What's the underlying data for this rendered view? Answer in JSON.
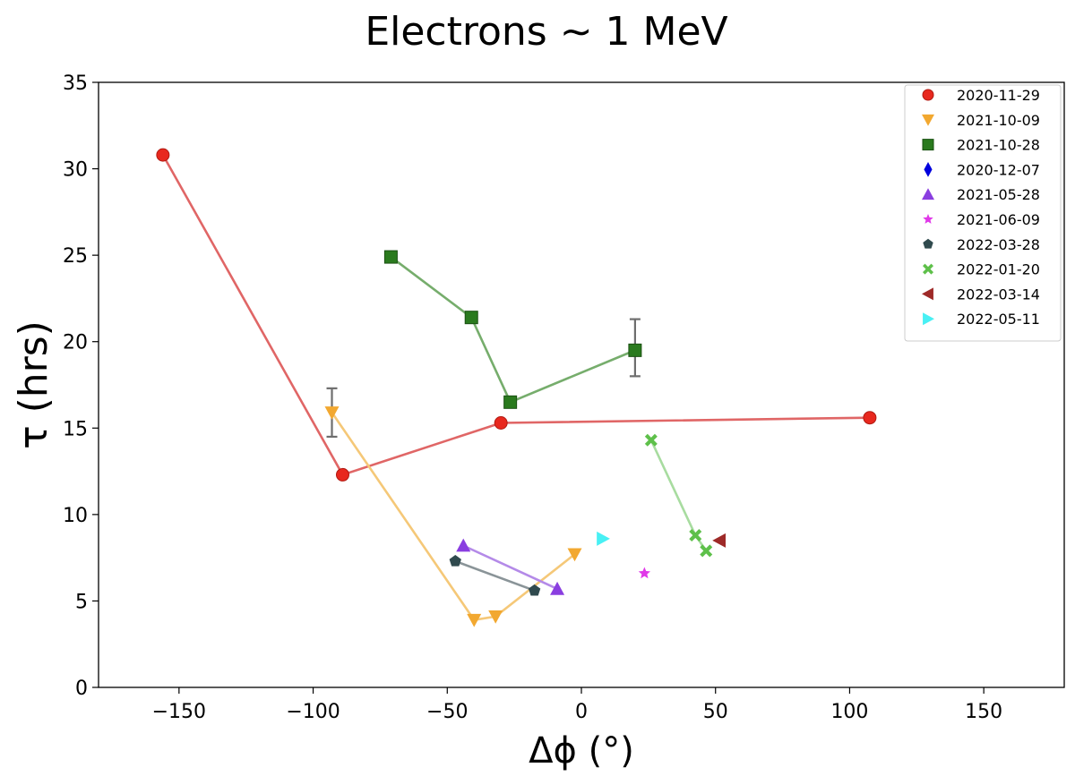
{
  "chart_data": {
    "type": "scatter",
    "title": "Electrons  ∼  1 MeV",
    "xlabel": "Δϕ (°)",
    "ylabel": "τ (hrs)",
    "xlim": [
      -180,
      180
    ],
    "ylim": [
      0,
      35
    ],
    "xticks": [
      -150,
      -100,
      -50,
      0,
      50,
      100,
      150
    ],
    "yticks": [
      0,
      5,
      10,
      15,
      20,
      25,
      30,
      35
    ],
    "xtick_labels": [
      "−150",
      "−100",
      "−50",
      "0",
      "50",
      "100",
      "150"
    ],
    "ytick_labels": [
      "0",
      "5",
      "10",
      "15",
      "20",
      "25",
      "30",
      "35"
    ],
    "grid": false,
    "legend_position": "top-right",
    "series": [
      {
        "name": "2020-11-29",
        "marker": "circle",
        "color": "#e8281e",
        "line_color": "#e06666",
        "x": [
          -156,
          -89,
          -30,
          107.5
        ],
        "y": [
          30.8,
          12.3,
          15.3,
          15.6
        ]
      },
      {
        "name": "2021-10-09",
        "marker": "triangle-down",
        "color": "#f2a830",
        "line_color": "#f5c878",
        "x": [
          -93,
          -40,
          -32,
          -2.5
        ],
        "y": [
          15.9,
          3.9,
          4.1,
          7.7
        ],
        "errorbars": [
          {
            "x": -93,
            "y": 15.9,
            "low": 14.5,
            "high": 17.3
          }
        ]
      },
      {
        "name": "2021-10-28",
        "marker": "square",
        "color": "#2a7a1e",
        "line_color": "#76ad6c",
        "x": [
          -71,
          -41,
          -26.5,
          20
        ],
        "y": [
          24.9,
          21.4,
          16.5,
          19.5
        ],
        "errorbars": [
          {
            "x": 20,
            "y": 19.5,
            "low": 18.0,
            "high": 21.3
          }
        ]
      },
      {
        "name": "2020-12-07",
        "marker": "diamond",
        "color": "#0000dd",
        "line_color": "#0000dd",
        "x": [],
        "y": []
      },
      {
        "name": "2021-05-28",
        "marker": "triangle-up",
        "color": "#8a3ee0",
        "line_color": "#b48ae8",
        "x": [
          -44,
          -9
        ],
        "y": [
          8.2,
          5.7
        ]
      },
      {
        "name": "2021-06-09",
        "marker": "star",
        "color": "#e038e8",
        "line_color": "#e038e8",
        "x": [
          23.5
        ],
        "y": [
          6.6
        ]
      },
      {
        "name": "2022-03-28",
        "marker": "pentagon",
        "color": "#304a4e",
        "line_color": "#8a9498",
        "x": [
          -47,
          -17.5
        ],
        "y": [
          7.3,
          5.6
        ]
      },
      {
        "name": "2022-01-20",
        "marker": "x",
        "color": "#5ec04a",
        "line_color": "#a8dca0",
        "x": [
          26,
          42.5,
          46.5
        ],
        "y": [
          14.3,
          8.8,
          7.9
        ]
      },
      {
        "name": "2022-03-14",
        "marker": "triangle-left",
        "color": "#9e2a28",
        "line_color": "#9e2a28",
        "x": [
          51.5
        ],
        "y": [
          8.5
        ]
      },
      {
        "name": "2022-05-11",
        "marker": "triangle-right",
        "color": "#48f0f4",
        "line_color": "#48f0f4",
        "x": [
          8
        ],
        "y": [
          8.6
        ]
      }
    ]
  }
}
